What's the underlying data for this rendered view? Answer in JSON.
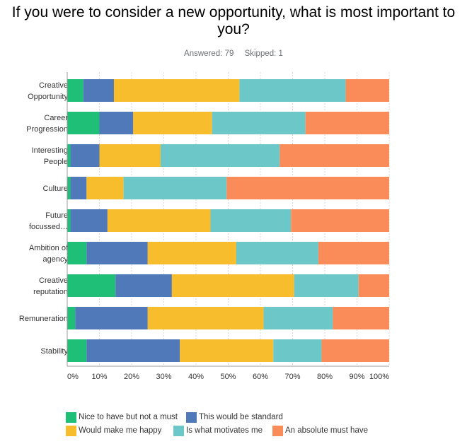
{
  "title": "If you were to consider a new opportunity, what is most important to you?",
  "answered": "Answered: 79",
  "skipped": "Skipped: 1",
  "chart_data": {
    "type": "bar",
    "orientation": "horizontal",
    "stacked": true,
    "categories": [
      "Creative Opportunity",
      "Career Progression",
      "Interesting People",
      "Culture",
      "Future focussed…",
      "Ambition of agency",
      "Creative reputation",
      "Remuneration",
      "Stability"
    ],
    "series": [
      {
        "name": "Nice to have but not a must",
        "color": "#1fbf77",
        "values": [
          5,
          10,
          1,
          1,
          1,
          6,
          15,
          2.5,
          6
        ]
      },
      {
        "name": "This would be standard",
        "color": "#4f79b8",
        "values": [
          9.5,
          10.5,
          9,
          5,
          11.5,
          19,
          17.5,
          22.5,
          29
        ]
      },
      {
        "name": "Would make me happy",
        "color": "#f8bd2c",
        "values": [
          39,
          24.5,
          19,
          11.5,
          32,
          27.5,
          38,
          36,
          29
        ]
      },
      {
        "name": "Is what motivates me",
        "color": "#6cc7c9",
        "values": [
          33,
          29,
          37,
          32,
          25,
          25.5,
          20,
          21.5,
          15
        ]
      },
      {
        "name": "An absolute must have",
        "color": "#fa8c5a",
        "values": [
          13.5,
          26,
          34,
          50.5,
          30.5,
          22,
          9.5,
          17.5,
          21
        ]
      }
    ],
    "xlim": [
      0,
      100
    ],
    "x_ticks": [
      "0%",
      "10%",
      "20%",
      "30%",
      "40%",
      "50%",
      "60%",
      "70%",
      "80%",
      "90%",
      "100%"
    ],
    "grid": true,
    "legend_position": "bottom"
  }
}
